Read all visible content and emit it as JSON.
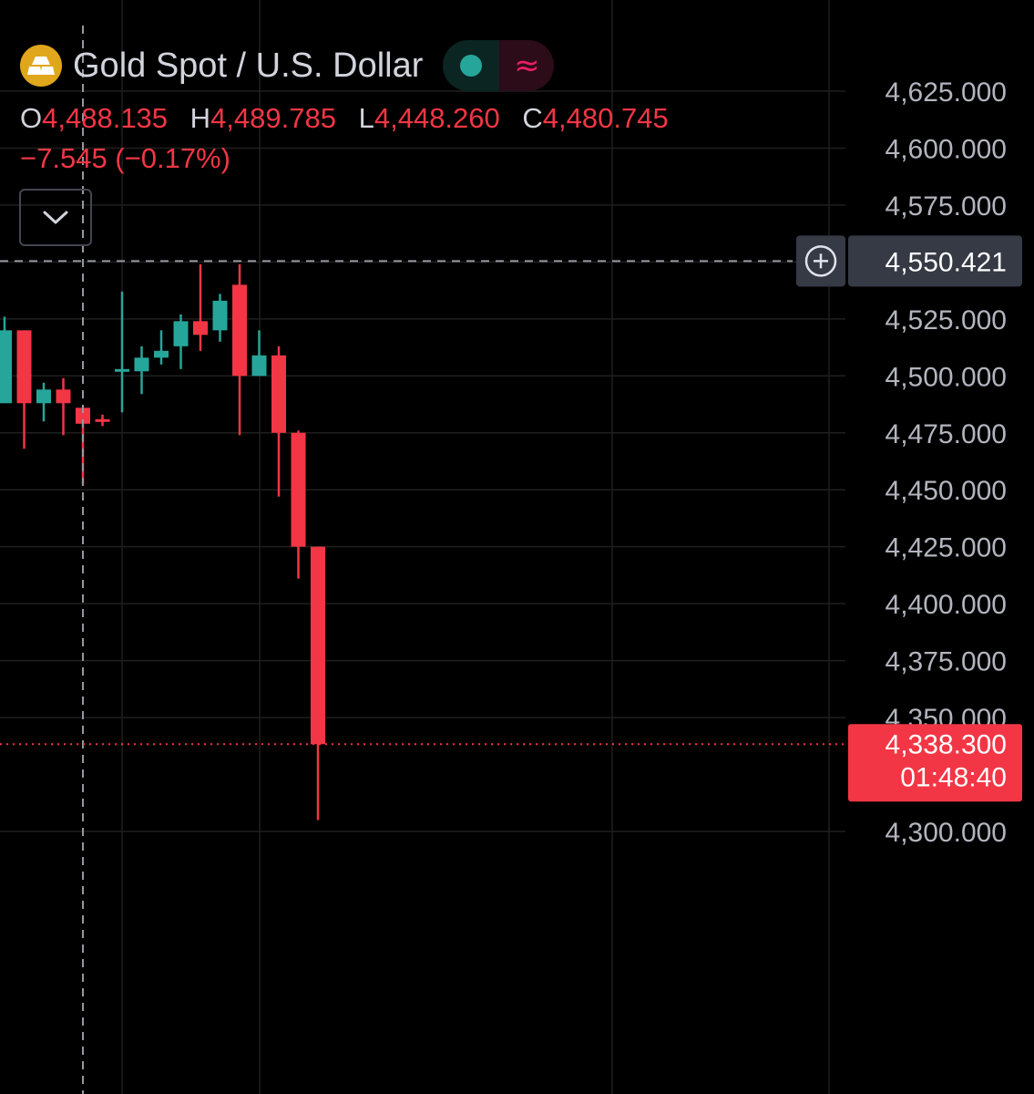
{
  "header": {
    "symbol_title": "Gold Spot / U.S. Dollar",
    "logo_icon": "gold-bars-icon",
    "status_icon": "market-open-dot-icon",
    "status_color": "#26a69a",
    "indicator_icon": "approximately-equal-icon",
    "indicator_symbol": "≈",
    "ohlc": {
      "o_label": "O",
      "o_value": "4,488.135",
      "h_label": "H",
      "h_value": "4,489.785",
      "l_label": "L",
      "l_value": "4,448.260",
      "c_label": "C",
      "c_value": "4,480.745"
    },
    "change": "−7.545 (−0.17%)",
    "expand_icon": "chevron-down-icon"
  },
  "colors": {
    "up": "#26a69a",
    "down": "#f23645",
    "background": "#000000",
    "grid": "#1f1f1f",
    "axis_text": "#b2b5be"
  },
  "chart_data": {
    "type": "candlestick",
    "title": "Gold Spot / U.S. Dollar",
    "y_axis_side": "right",
    "ylim": [
      4265,
      4650
    ],
    "y_ticks": [
      "4,625.000",
      "4,600.000",
      "4,575.000",
      "4,525.000",
      "4,500.000",
      "4,475.000",
      "4,450.000",
      "4,425.000",
      "4,400.000",
      "4,375.000",
      "4,350.000",
      "4,300.000"
    ],
    "y_tick_values": [
      4625,
      4600,
      4575,
      4525,
      4500,
      4475,
      4450,
      4425,
      4400,
      4375,
      4350,
      4300
    ],
    "candles": [
      {
        "o": 4488,
        "h": 4526,
        "l": 4488,
        "c": 4520
      },
      {
        "o": 4520,
        "h": 4520,
        "l": 4468,
        "c": 4488
      },
      {
        "o": 4488,
        "h": 4497,
        "l": 4480,
        "c": 4494
      },
      {
        "o": 4494,
        "h": 4499,
        "l": 4474,
        "c": 4488
      },
      {
        "o": 4486,
        "h": 4486,
        "l": 4452,
        "c": 4479
      },
      {
        "o": 4481,
        "h": 4483,
        "l": 4478,
        "c": 4480
      },
      {
        "o": 4502,
        "h": 4537,
        "l": 4484,
        "c": 4503
      },
      {
        "o": 4502,
        "h": 4513,
        "l": 4492,
        "c": 4508
      },
      {
        "o": 4508,
        "h": 4520,
        "l": 4505,
        "c": 4511
      },
      {
        "o": 4513,
        "h": 4527,
        "l": 4503,
        "c": 4524
      },
      {
        "o": 4524,
        "h": 4549,
        "l": 4511,
        "c": 4518
      },
      {
        "o": 4520,
        "h": 4536,
        "l": 4515,
        "c": 4533
      },
      {
        "o": 4540,
        "h": 4549,
        "l": 4474,
        "c": 4500
      },
      {
        "o": 4500,
        "h": 4520,
        "l": 4500,
        "c": 4509
      },
      {
        "o": 4509,
        "h": 4513,
        "l": 4447,
        "c": 4475
      },
      {
        "o": 4475,
        "h": 4476,
        "l": 4411,
        "c": 4425
      },
      {
        "o": 4425,
        "h": 4425,
        "l": 4305,
        "c": 4338.3
      }
    ],
    "crosshair": {
      "price": 4550.421,
      "label": "4,550.421",
      "candle_index": 4,
      "icon": "plus-circle-icon"
    },
    "last_price": {
      "price": 4338.3,
      "label": "4,338.300",
      "countdown": "01:48:40"
    },
    "grid": true
  }
}
